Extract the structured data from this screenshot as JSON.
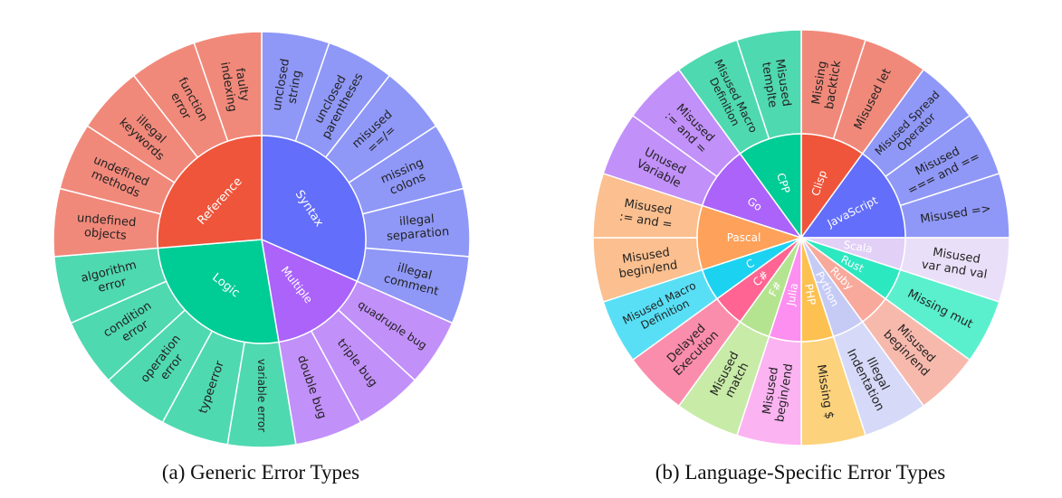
{
  "chart_data": [
    {
      "type": "sunburst",
      "caption": "(a) Generic Error Types",
      "groups": [
        {
          "name": "Syntax",
          "color": "#636efa",
          "children": [
            {
              "name": "unclosed\nstring",
              "color": "#8f98f7"
            },
            {
              "name": "unclosed\nparentheses",
              "color": "#8f98f7"
            },
            {
              "name": "misused\n==/=",
              "color": "#8f98f7"
            },
            {
              "name": "missing\ncolons",
              "color": "#8f98f7"
            },
            {
              "name": "illegal\nseparation",
              "color": "#8f98f7"
            },
            {
              "name": "illegal\ncomment",
              "color": "#8f98f7"
            }
          ]
        },
        {
          "name": "Multiple",
          "color": "#ab63fa",
          "children": [
            {
              "name": "quadruple bug",
              "color": "#c290f9"
            },
            {
              "name": "triple bug",
              "color": "#c290f9"
            },
            {
              "name": "double bug",
              "color": "#c290f9"
            }
          ]
        },
        {
          "name": "Logic",
          "color": "#00cc96",
          "children": [
            {
              "name": "variable error",
              "color": "#4fd9b0"
            },
            {
              "name": "typeerror",
              "color": "#4fd9b0"
            },
            {
              "name": "operation\nerror",
              "color": "#4fd9b0"
            },
            {
              "name": "condition\nerror",
              "color": "#4fd9b0"
            },
            {
              "name": "algorithm\nerror",
              "color": "#4fd9b0"
            }
          ]
        },
        {
          "name": "Reference",
          "color": "#ef553b",
          "children": [
            {
              "name": "undefined\nobjects",
              "color": "#f1897a"
            },
            {
              "name": "undefined\nmethods",
              "color": "#f1897a"
            },
            {
              "name": "illegal\nkeywords",
              "color": "#f1897a"
            },
            {
              "name": "function\nerror",
              "color": "#f1897a"
            },
            {
              "name": "faulty\nindexing",
              "color": "#f1897a"
            }
          ]
        }
      ]
    },
    {
      "type": "sunburst",
      "caption": "(b) Language-Specific Error Types",
      "groups": [
        {
          "name": "Clisp",
          "color": "#ef553b",
          "children": [
            {
              "name": "Missing\nbacktick",
              "color": "#f1897a"
            },
            {
              "name": "Misused let",
              "color": "#f1897a"
            }
          ]
        },
        {
          "name": "JavaScript",
          "color": "#636efa",
          "children": [
            {
              "name": "Misused Spread\nOperator",
              "color": "#8f98f7"
            },
            {
              "name": "Misused\n=== and ==",
              "color": "#8f98f7"
            },
            {
              "name": "Misused =>",
              "color": "#8f98f7"
            }
          ]
        },
        {
          "name": "Scala",
          "color": "#e2d0f7",
          "children": [
            {
              "name": "Misused\nvar and val",
              "color": "#eadff8"
            }
          ]
        },
        {
          "name": "Rust",
          "color": "#2ce8c0",
          "children": [
            {
              "name": "Missing mut",
              "color": "#5af0cd"
            }
          ]
        },
        {
          "name": "Ruby",
          "color": "#f9a99b",
          "children": [
            {
              "name": "Misused\nbegin/end",
              "color": "#f8b9ad"
            }
          ]
        },
        {
          "name": "Python",
          "color": "#c6cbf6",
          "children": [
            {
              "name": "Illegal\nIndentation",
              "color": "#d6d9f7"
            }
          ]
        },
        {
          "name": "PHP",
          "color": "#fdc151",
          "children": [
            {
              "name": "Missing $",
              "color": "#fdd27c"
            }
          ]
        },
        {
          "name": "Julia",
          "color": "#fd8ff0",
          "children": [
            {
              "name": "Misused\nbegin/end",
              "color": "#fcb3f2"
            }
          ]
        },
        {
          "name": "F#",
          "color": "#b4e48f",
          "children": [
            {
              "name": "Misused\nmatch",
              "color": "#c8eba7"
            }
          ]
        },
        {
          "name": "C#",
          "color": "#ff6492",
          "children": [
            {
              "name": "Delayed\nExecution",
              "color": "#fb8dac"
            }
          ]
        },
        {
          "name": "C",
          "color": "#1cd2f1",
          "children": [
            {
              "name": "Misused Macro\nDefinition",
              "color": "#58dff5"
            }
          ]
        },
        {
          "name": "Pascal",
          "color": "#fea15a",
          "children": [
            {
              "name": "Misused\nbegin/end",
              "color": "#fcbf8f"
            },
            {
              "name": "Misused\n:= and =",
              "color": "#fcbf8f"
            }
          ]
        },
        {
          "name": "Go",
          "color": "#ab63fa",
          "children": [
            {
              "name": "Unused\nVariable",
              "color": "#c290f9"
            },
            {
              "name": "Misused\n:= and =",
              "color": "#c290f9"
            }
          ]
        },
        {
          "name": "CPP",
          "color": "#00cc96",
          "children": [
            {
              "name": "Misused Macro\nDefinition",
              "color": "#4fd9b0"
            },
            {
              "name": "Misused\ntemplte",
              "color": "#4fd9b0"
            }
          ]
        }
      ]
    }
  ]
}
